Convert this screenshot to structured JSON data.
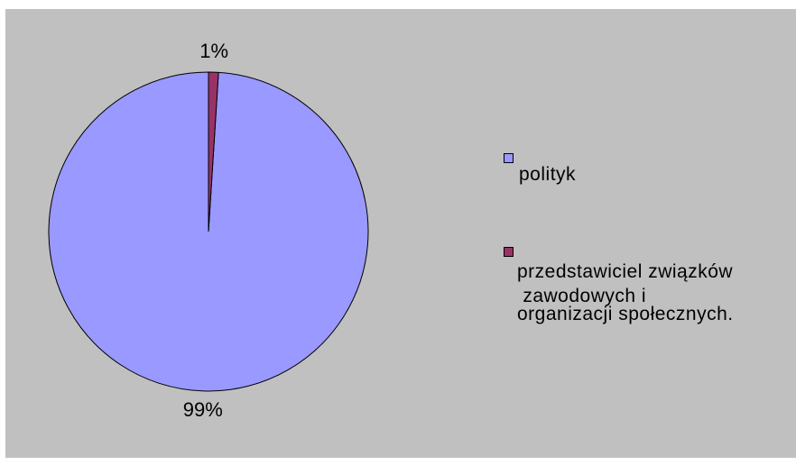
{
  "chart_data": {
    "type": "pie",
    "slices": [
      {
        "label": "polityk",
        "value": 99,
        "value_label": "99%",
        "color": "#9999ff"
      },
      {
        "label": "przedstawiciel związków zawodowych i organizacji społecznych.",
        "value": 1,
        "value_label": "1%",
        "color": "#993366"
      }
    ],
    "legend": {
      "placement": "right",
      "entries": [
        {
          "lines": [
            "polityk"
          ]
        },
        {
          "lines": [
            "przedstawiciel związków",
            " zawodowych i",
            "organizacji społecznych."
          ]
        }
      ]
    },
    "background": "#c0c0c0",
    "start": "top",
    "direction": "counter-clockwise"
  }
}
